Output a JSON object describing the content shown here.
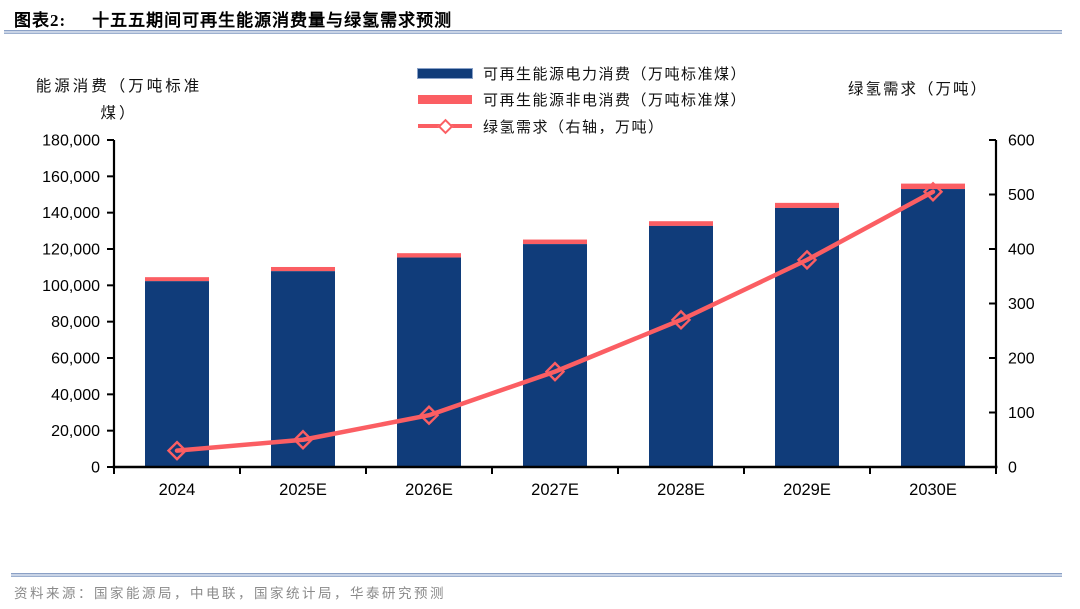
{
  "header": {
    "label": "图表2:",
    "title": "十五五期间可再生能源消费量与绿氢需求预测"
  },
  "footer": {
    "source": "资料来源：国家能源局，中电联，国家统计局，华泰研究预测"
  },
  "colors": {
    "bar_electric": "#103c7a",
    "bar_nonelectric": "#fb5e63",
    "line_hydrogen": "#fb5e63",
    "axis": "#000000",
    "rule_blue": "#8aa0c6",
    "footer_text": "#8a8a8a"
  },
  "chart_data": {
    "type": "bar+line",
    "categories": [
      "2024",
      "2025E",
      "2026E",
      "2027E",
      "2028E",
      "2029E",
      "2030E"
    ],
    "series": [
      {
        "name": "可再生能源电力消费（万吨标准煤）",
        "type": "bar",
        "stack": "consumption",
        "axis": "left",
        "color": "#103c7a",
        "values": [
          102300,
          107800,
          115300,
          122700,
          132700,
          142600,
          153000
        ]
      },
      {
        "name": "可再生能源非电消费（万吨标准煤）",
        "type": "bar",
        "stack": "consumption",
        "axis": "left",
        "color": "#fb5e63",
        "values": [
          2200,
          2300,
          2400,
          2500,
          2600,
          2800,
          3000
        ]
      },
      {
        "name": "绿氢需求（右轴，万吨）",
        "type": "line",
        "axis": "right",
        "color": "#fb5e63",
        "marker": "diamond-open",
        "values": [
          30,
          50,
          95,
          175,
          270,
          380,
          505
        ]
      }
    ],
    "left_axis": {
      "title": "能源消费（万吨标准煤）",
      "min": 0,
      "max": 180000,
      "step": 20000,
      "tick_labels": [
        "0",
        "20,000",
        "40,000",
        "60,000",
        "80,000",
        "100,000",
        "120,000",
        "140,000",
        "160,000",
        "180,000"
      ]
    },
    "right_axis": {
      "title": "绿氢需求（万吨）",
      "min": 0,
      "max": 600,
      "step": 100,
      "tick_labels": [
        "0",
        "100",
        "200",
        "300",
        "400",
        "500",
        "600"
      ]
    },
    "legend_position": "top-center",
    "grid": false
  }
}
